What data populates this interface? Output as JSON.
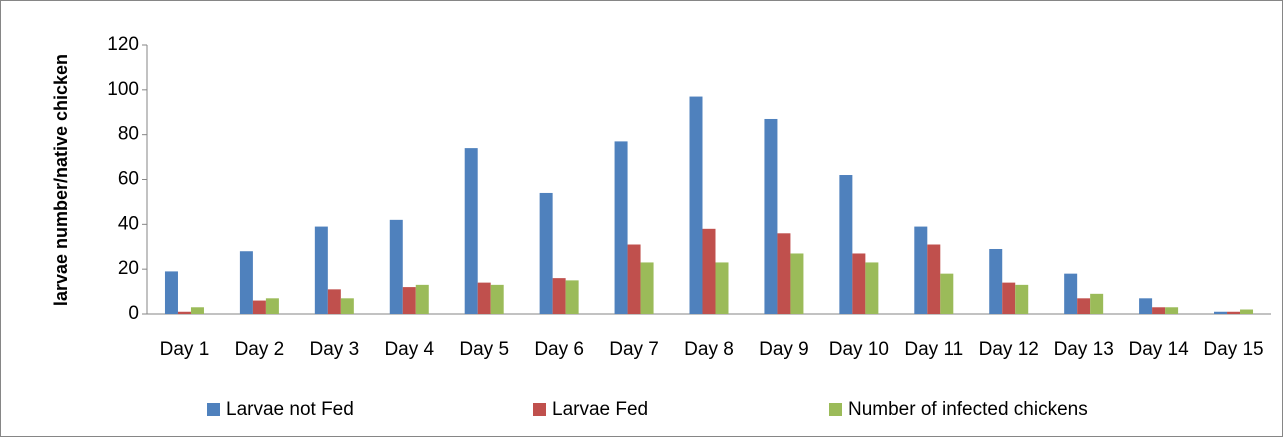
{
  "chart_data": {
    "type": "bar",
    "y_label": "larvae number/native chicken",
    "categories": [
      "Day 1",
      "Day 2",
      "Day 3",
      "Day 4",
      "Day 5",
      "Day 6",
      "Day 7",
      "Day 8",
      "Day 9",
      "Day 10",
      "Day 11",
      "Day 12",
      "Day 13",
      "Day 14",
      "Day 15"
    ],
    "series": [
      {
        "name": "Larvae not Fed",
        "color": "#4f81bd",
        "values": [
          19,
          28,
          39,
          42,
          74,
          54,
          77,
          97,
          87,
          62,
          39,
          29,
          18,
          7,
          1
        ]
      },
      {
        "name": "Larvae Fed",
        "color": "#c0504d",
        "values": [
          1,
          6,
          11,
          12,
          14,
          16,
          31,
          38,
          36,
          27,
          31,
          14,
          7,
          3,
          1
        ]
      },
      {
        "name": "Number of infected chickens",
        "color": "#9bbb59",
        "values": [
          3,
          7,
          7,
          13,
          13,
          15,
          23,
          23,
          27,
          23,
          18,
          13,
          9,
          3,
          2
        ]
      }
    ],
    "ylim": [
      0,
      120
    ],
    "yticks": [
      0,
      20,
      40,
      60,
      80,
      100,
      120
    ],
    "grid": false,
    "legend": "bottom"
  }
}
